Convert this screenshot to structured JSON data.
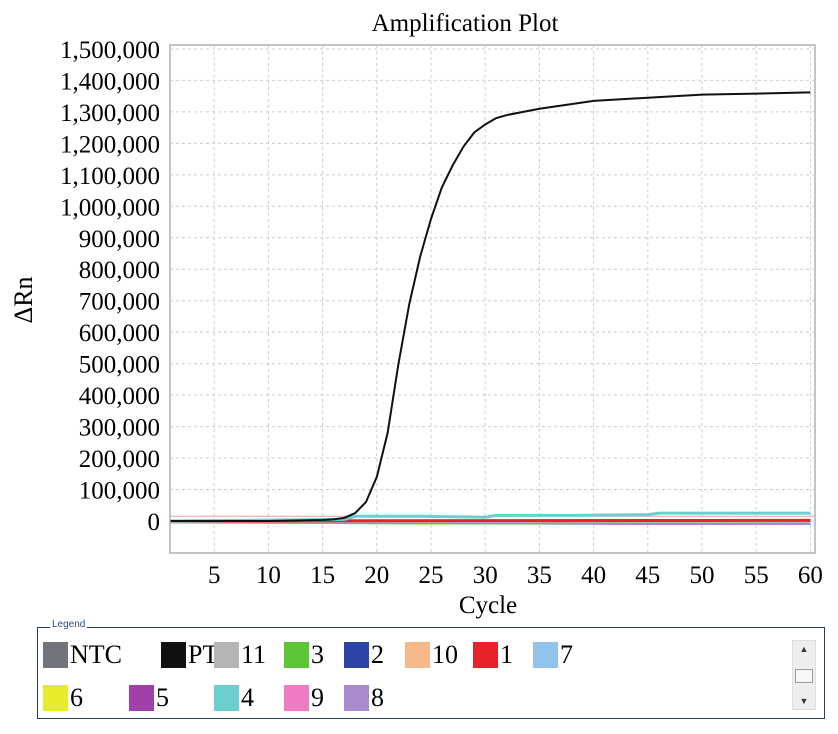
{
  "chart_data": {
    "type": "line",
    "title": "Amplification Plot",
    "xlabel": "Cycle",
    "ylabel": "ΔRn",
    "xlim": [
      1,
      60
    ],
    "ylim": [
      -100000,
      1500000
    ],
    "xticks": [
      5,
      10,
      15,
      20,
      25,
      30,
      35,
      40,
      45,
      50,
      55,
      60
    ],
    "yticks": [
      0,
      100000,
      200000,
      300000,
      400000,
      500000,
      600000,
      700000,
      800000,
      900000,
      1000000,
      1100000,
      1200000,
      1300000,
      1400000,
      1500000
    ],
    "ytick_labels": [
      "0",
      "100,000",
      "200,000",
      "300,000",
      "400,000",
      "500,000",
      "600,000",
      "700,000",
      "800,000",
      "900,000",
      "1,000,000",
      "1,100,000",
      "1,200,000",
      "1,300,000",
      "1,400,000",
      "1,500,000"
    ],
    "grid": true,
    "threshold": 15000,
    "series": [
      {
        "name": "PTC",
        "color": "#111111",
        "x": [
          1,
          5,
          10,
          15,
          16,
          17,
          18,
          19,
          20,
          21,
          22,
          23,
          24,
          25,
          26,
          27,
          28,
          29,
          30,
          31,
          32,
          35,
          40,
          45,
          50,
          55,
          60
        ],
        "y": [
          0,
          0,
          0,
          3000,
          5000,
          10000,
          25000,
          60000,
          140000,
          280000,
          500000,
          690000,
          840000,
          960000,
          1060000,
          1130000,
          1190000,
          1235000,
          1260000,
          1280000,
          1290000,
          1310000,
          1335000,
          1345000,
          1355000,
          1358000,
          1362000
        ]
      },
      {
        "name": "4",
        "color": "#6ccfcf",
        "x": [
          1,
          17,
          18,
          24,
          30,
          31,
          38,
          45,
          46,
          47,
          60
        ],
        "y": [
          0,
          5000,
          15000,
          15000,
          12000,
          18000,
          18000,
          20000,
          25000,
          25000,
          25000
        ]
      },
      {
        "name": "1",
        "color": "#e8222a",
        "x": [
          1,
          60
        ],
        "y": [
          0,
          2000
        ]
      },
      {
        "name": "11",
        "color": "#b5b5b5",
        "x": [
          1,
          60
        ],
        "y": [
          -2000,
          -2000
        ]
      },
      {
        "name": "3",
        "color": "#5cc535",
        "x": [
          1,
          24,
          30,
          40,
          60
        ],
        "y": [
          -2000,
          -6000,
          -6000,
          -5000,
          -4000
        ]
      },
      {
        "name": "8",
        "color": "#a98acc",
        "x": [
          1,
          46,
          60
        ],
        "y": [
          -3000,
          -8000,
          -8000
        ]
      },
      {
        "name": "5",
        "color": "#a040a8",
        "x": [
          1,
          20,
          40,
          60
        ],
        "y": [
          -1000,
          -3000,
          -4000,
          -4000
        ]
      },
      {
        "name": "2",
        "color": "#2d45a6",
        "x": [
          1,
          6,
          9,
          10,
          60
        ],
        "y": [
          -1000,
          -3000,
          -3000,
          0,
          -1000
        ]
      }
    ]
  },
  "legend": {
    "title": "Legend",
    "items": [
      {
        "label": "NTC",
        "color": "#71747a"
      },
      {
        "label": "PTC",
        "color": "#111111"
      },
      {
        "label": "11",
        "color": "#b5b5b5"
      },
      {
        "label": "3",
        "color": "#5cc535"
      },
      {
        "label": "2",
        "color": "#2d45a6"
      },
      {
        "label": "10",
        "color": "#f7b98a"
      },
      {
        "label": "1",
        "color": "#e8222a"
      },
      {
        "label": "7",
        "color": "#92c3ec"
      },
      {
        "label": "6",
        "color": "#e4ec2c"
      },
      {
        "label": "5",
        "color": "#a040a8"
      },
      {
        "label": "4",
        "color": "#6ccfcf"
      },
      {
        "label": "9",
        "color": "#f07bc3"
      },
      {
        "label": "8",
        "color": "#a98acc"
      }
    ]
  },
  "scroll": {
    "up": "▲",
    "down": "▼"
  }
}
